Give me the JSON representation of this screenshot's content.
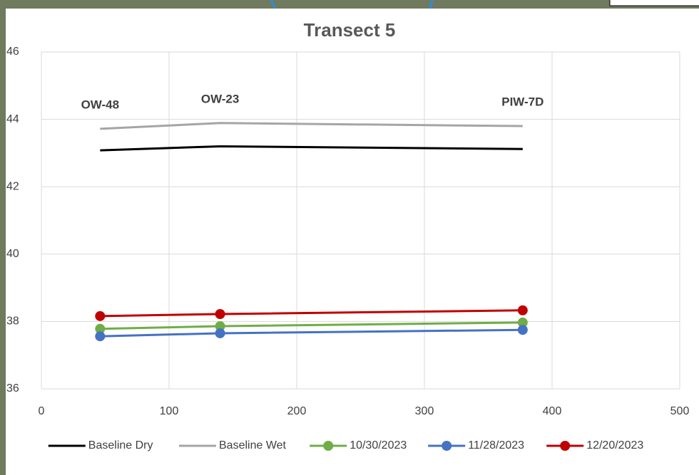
{
  "chart_data": {
    "type": "line",
    "title": "Transect 5",
    "x": [
      46,
      140,
      377
    ],
    "series": [
      {
        "name": "Baseline Dry",
        "color": "#000000",
        "marker": false,
        "values": [
          43.08,
          43.2,
          43.12
        ]
      },
      {
        "name": "Baseline Wet",
        "color": "#a5a5a5",
        "marker": false,
        "values": [
          43.72,
          43.89,
          43.8
        ]
      },
      {
        "name": "10/30/2023",
        "color": "#70ad47",
        "marker": true,
        "values": [
          37.78,
          37.86,
          37.97
        ]
      },
      {
        "name": "11/28/2023",
        "color": "#4472c4",
        "marker": true,
        "values": [
          37.56,
          37.65,
          37.75
        ]
      },
      {
        "name": "12/20/2023",
        "color": "#c00000",
        "marker": true,
        "values": [
          38.16,
          38.22,
          38.33
        ]
      }
    ],
    "annotations": [
      "OW-48",
      "OW-23",
      "PIW-7D"
    ],
    "xlim": [
      0,
      500
    ],
    "xticks": [
      0,
      100,
      200,
      300,
      400,
      500
    ],
    "ylim": [
      36,
      46
    ],
    "yticks": [
      36,
      38,
      40,
      42,
      44,
      46
    ],
    "grid": true,
    "legend": "bottom"
  }
}
